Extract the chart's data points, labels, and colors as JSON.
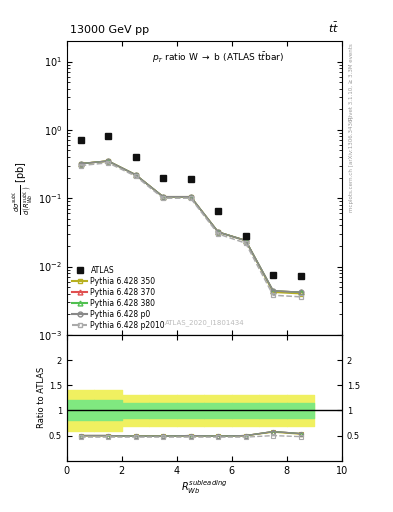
{
  "atlas_x": [
    0.5,
    1.5,
    2.5,
    3.5,
    4.5,
    5.5,
    6.5,
    7.5,
    8.5
  ],
  "atlas_y": [
    0.72,
    0.8,
    0.4,
    0.2,
    0.19,
    0.065,
    0.028,
    0.0075,
    0.0073
  ],
  "mc_x": [
    0.5,
    1.5,
    2.5,
    3.5,
    4.5,
    5.5,
    6.5,
    7.5,
    8.5
  ],
  "py350_y": [
    0.32,
    0.35,
    0.22,
    0.105,
    0.105,
    0.032,
    0.024,
    0.0042,
    0.004
  ],
  "py370_y": [
    0.32,
    0.35,
    0.22,
    0.105,
    0.105,
    0.032,
    0.024,
    0.0044,
    0.0042
  ],
  "py380_y": [
    0.32,
    0.35,
    0.22,
    0.105,
    0.105,
    0.032,
    0.024,
    0.0044,
    0.0042
  ],
  "pyp0_y": [
    0.32,
    0.35,
    0.22,
    0.105,
    0.105,
    0.032,
    0.024,
    0.0044,
    0.0042
  ],
  "pyp2010_y": [
    0.3,
    0.33,
    0.21,
    0.1,
    0.1,
    0.03,
    0.022,
    0.0038,
    0.0036
  ],
  "ratio_py350": [
    0.5,
    0.5,
    0.49,
    0.49,
    0.5,
    0.49,
    0.5,
    0.57,
    0.53
  ],
  "ratio_py370": [
    0.5,
    0.5,
    0.49,
    0.49,
    0.5,
    0.49,
    0.5,
    0.58,
    0.54
  ],
  "ratio_py380": [
    0.5,
    0.5,
    0.49,
    0.49,
    0.5,
    0.49,
    0.5,
    0.58,
    0.54
  ],
  "ratio_pyp0": [
    0.5,
    0.5,
    0.49,
    0.49,
    0.5,
    0.49,
    0.5,
    0.58,
    0.54
  ],
  "ratio_pyp2010": [
    0.47,
    0.47,
    0.47,
    0.47,
    0.47,
    0.47,
    0.47,
    0.5,
    0.48
  ],
  "xbins": [
    0.0,
    1.0,
    2.0,
    3.0,
    4.0,
    5.0,
    6.0,
    7.0,
    8.0,
    9.0
  ],
  "band_yellow_lo": [
    0.6,
    0.6,
    0.7,
    0.7,
    0.7,
    0.7,
    0.7,
    0.7,
    0.7
  ],
  "band_yellow_hi": [
    1.4,
    1.4,
    1.3,
    1.3,
    1.3,
    1.3,
    1.3,
    1.3,
    1.3
  ],
  "band_green_lo": [
    0.8,
    0.8,
    0.85,
    0.85,
    0.85,
    0.85,
    0.85,
    0.85,
    0.85
  ],
  "band_green_hi": [
    1.2,
    1.2,
    1.15,
    1.15,
    1.15,
    1.15,
    1.15,
    1.15,
    1.15
  ],
  "xlim": [
    0,
    10
  ],
  "ylim_main": [
    0.001,
    20.0
  ],
  "ylim_ratio": [
    0.0,
    2.5
  ],
  "color_350": "#b8b020",
  "color_370": "#e05050",
  "color_380": "#50c050",
  "color_p0": "#888888",
  "color_p2010": "#aaaaaa",
  "color_atlas": "#111111",
  "color_yellow": "#f0f060",
  "color_green": "#80e880"
}
